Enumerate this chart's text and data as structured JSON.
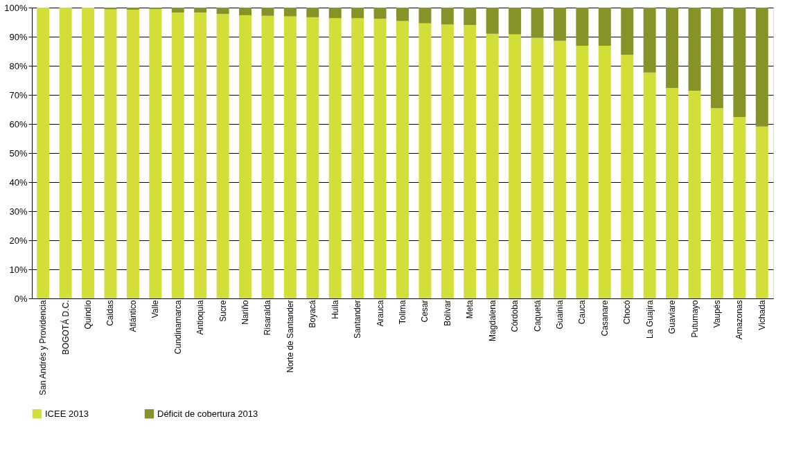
{
  "chart_data": {
    "type": "bar",
    "stacked": true,
    "categories": [
      "San Andrés y Providencia",
      "BOGOTÁ D.C.",
      "Quindío",
      "Caldas",
      "Atlántico",
      "Valle",
      "Cundinamarca",
      "Antioquia",
      "Sucre",
      "Nariño",
      "Risaralda",
      "Norte de Santander",
      "Boyacá",
      "Huila",
      "Santander",
      "Arauca",
      "Tolima",
      "Cesar",
      "Bolívar",
      "Meta",
      "Magdalena",
      "Córdoba",
      "Caquetá",
      "Guainía",
      "Cauca",
      "Casanare",
      "Chocó",
      "La Guajira",
      "Guaviare",
      "Putumayo",
      "Vaupés",
      "Amazonas",
      "Vichada"
    ],
    "series": [
      {
        "name": "ICEE 2013",
        "color": "#d4de39",
        "values": [
          100,
          100,
          100,
          99.4,
          99.3,
          99.5,
          98.3,
          98.3,
          97.8,
          97.4,
          97.2,
          97.0,
          96.7,
          96.4,
          96.4,
          96.2,
          95.4,
          94.6,
          94.2,
          94.0,
          91.0,
          90.8,
          89.6,
          88.6,
          86.9,
          86.9,
          83.8,
          77.7,
          72.4,
          71.4,
          65.4,
          62.4,
          59.1
        ]
      },
      {
        "name": "Déficit de cobertura 2013",
        "color": "#879227",
        "values": [
          0,
          0,
          0,
          0.6,
          0.7,
          0.5,
          1.7,
          1.7,
          2.2,
          2.6,
          2.8,
          3.0,
          3.3,
          3.6,
          3.6,
          3.8,
          4.6,
          5.4,
          5.8,
          6.0,
          9.0,
          9.2,
          10.4,
          11.4,
          13.1,
          13.1,
          16.2,
          22.3,
          27.6,
          28.6,
          34.6,
          37.6,
          40.9
        ]
      }
    ],
    "ylim": [
      0,
      100
    ],
    "yticks": [
      {
        "value": 0,
        "label": "0%"
      },
      {
        "value": 10,
        "label": "10%"
      },
      {
        "value": 20,
        "label": "20%"
      },
      {
        "value": 30,
        "label": "30%"
      },
      {
        "value": 40,
        "label": "40%"
      },
      {
        "value": 50,
        "label": "50%"
      },
      {
        "value": 60,
        "label": "60%"
      },
      {
        "value": 70,
        "label": "70%"
      },
      {
        "value": 80,
        "label": "80%"
      },
      {
        "value": 90,
        "label": "90%"
      },
      {
        "value": 100,
        "label": "100%"
      }
    ],
    "grid": "y",
    "legend": "bottom"
  }
}
